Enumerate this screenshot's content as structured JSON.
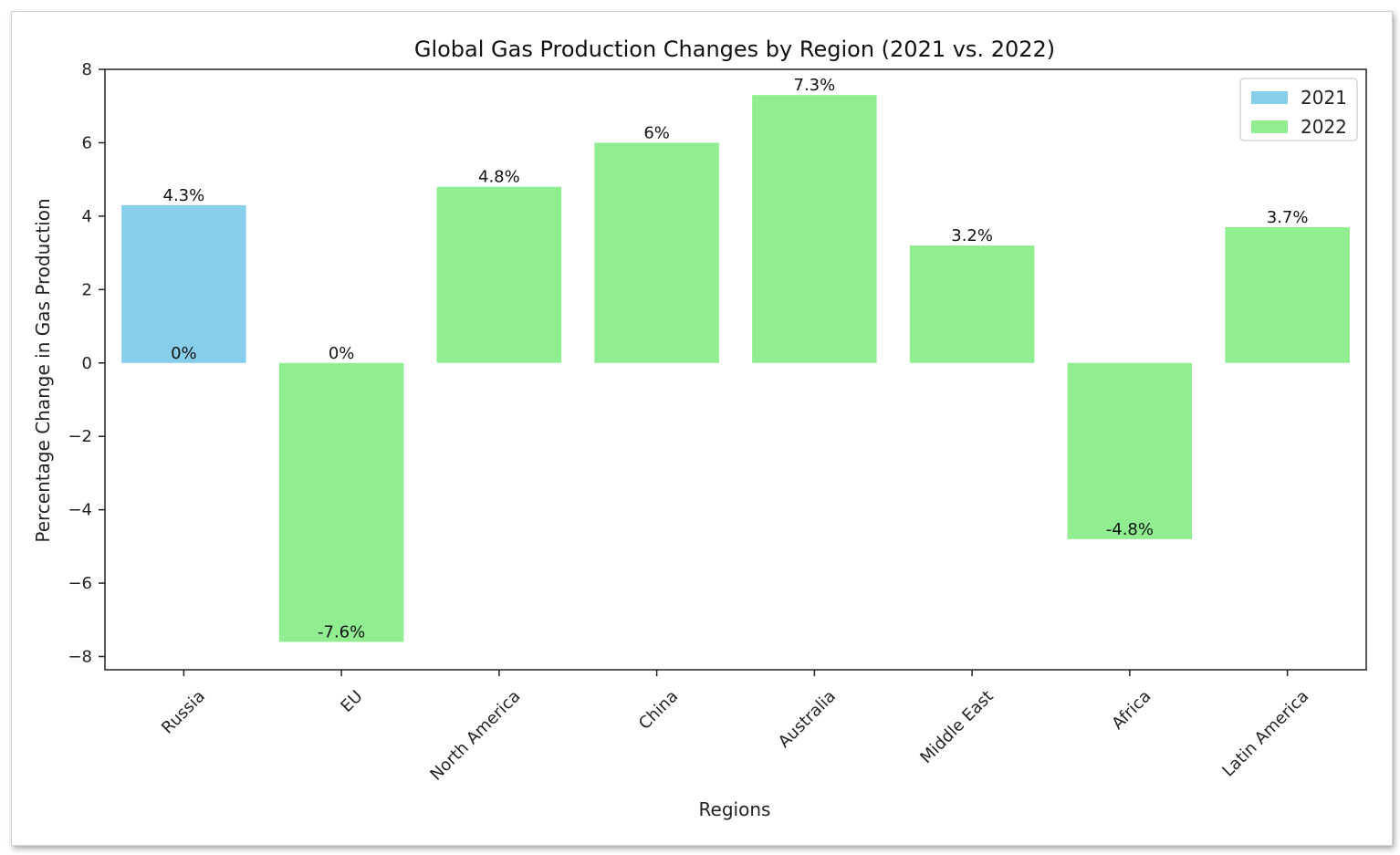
{
  "chart_data": {
    "type": "bar",
    "title": "Global Gas Production Changes by Region (2021 vs. 2022)",
    "xlabel": "Regions",
    "ylabel": "Percentage Change in Gas Production",
    "categories": [
      "Russia",
      "EU",
      "North America",
      "China",
      "Australia",
      "Middle East",
      "Africa",
      "Latin America"
    ],
    "series": [
      {
        "name": "2021",
        "color": "#87ceeb",
        "values": [
          4.3,
          0,
          null,
          null,
          null,
          null,
          null,
          null
        ]
      },
      {
        "name": "2022",
        "color": "#90ee90",
        "values": [
          0,
          -7.6,
          4.8,
          6,
          7.3,
          3.2,
          -4.8,
          3.7
        ]
      }
    ],
    "data_labels": [
      {
        "category": "Russia",
        "series": "2021",
        "text": "4.3%"
      },
      {
        "category": "Russia",
        "series": "2022",
        "text": "0%"
      },
      {
        "category": "EU",
        "series": "2021",
        "text": "0%"
      },
      {
        "category": "EU",
        "series": "2022",
        "text": "-7.6%"
      },
      {
        "category": "North America",
        "series": "2022",
        "text": "4.8%"
      },
      {
        "category": "China",
        "series": "2022",
        "text": "6%"
      },
      {
        "category": "Australia",
        "series": "2022",
        "text": "7.3%"
      },
      {
        "category": "Middle East",
        "series": "2022",
        "text": "3.2%"
      },
      {
        "category": "Africa",
        "series": "2022",
        "text": "-4.8%"
      },
      {
        "category": "Latin America",
        "series": "2022",
        "text": "3.7%"
      }
    ],
    "yticks": [
      8,
      6,
      4,
      2,
      0,
      -2,
      -4,
      -6,
      -8
    ],
    "ytick_labels": [
      "8",
      "6",
      "4",
      "2",
      "0",
      "−2",
      "−4",
      "−6",
      "−8"
    ],
    "ylim": [
      -8.36,
      8.0
    ],
    "legend": {
      "placement": "top-right",
      "entries": [
        "2021",
        "2022"
      ]
    },
    "grid": false
  }
}
